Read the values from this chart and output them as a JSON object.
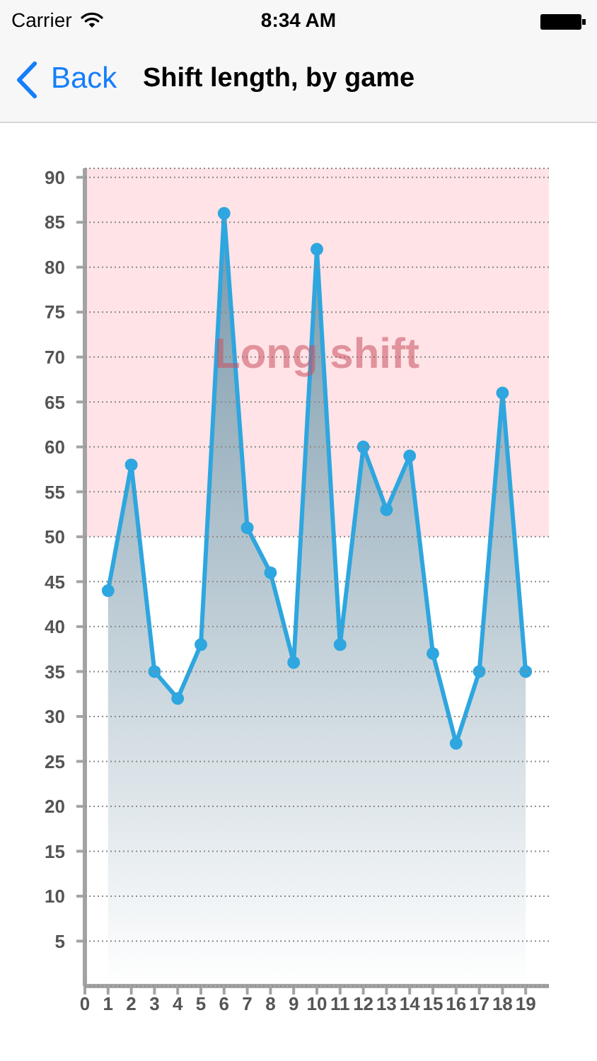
{
  "chart_data": {
    "type": "area",
    "title": "Shift length, by game",
    "annotations": [
      "Carrier",
      "8:34 AM",
      "Back"
    ],
    "x": [
      1,
      2,
      3,
      4,
      5,
      6,
      7,
      8,
      9,
      10,
      11,
      12,
      13,
      14,
      15,
      16,
      17,
      18,
      19
    ],
    "values": [
      44,
      58,
      35,
      32,
      38,
      86,
      51,
      46,
      36,
      82,
      38,
      60,
      53,
      59,
      37,
      27,
      35,
      66,
      35
    ],
    "color": "#2ea6df",
    "marker": "circle",
    "xlim": [
      0,
      20
    ],
    "xticks": [
      0,
      1,
      2,
      3,
      4,
      5,
      6,
      7,
      8,
      9,
      10,
      11,
      12,
      13,
      14,
      15,
      16,
      17,
      18,
      19
    ],
    "ylim": [
      0,
      91
    ],
    "yticks": [
      5,
      10,
      15,
      20,
      25,
      30,
      35,
      40,
      45,
      50,
      55,
      60,
      65,
      70,
      75,
      80,
      85,
      90
    ],
    "grid": "y",
    "bands": [
      {
        "axis": "y",
        "from": 50,
        "to": 91,
        "label": "Long shift",
        "color": "#ffe3e6"
      }
    ]
  }
}
